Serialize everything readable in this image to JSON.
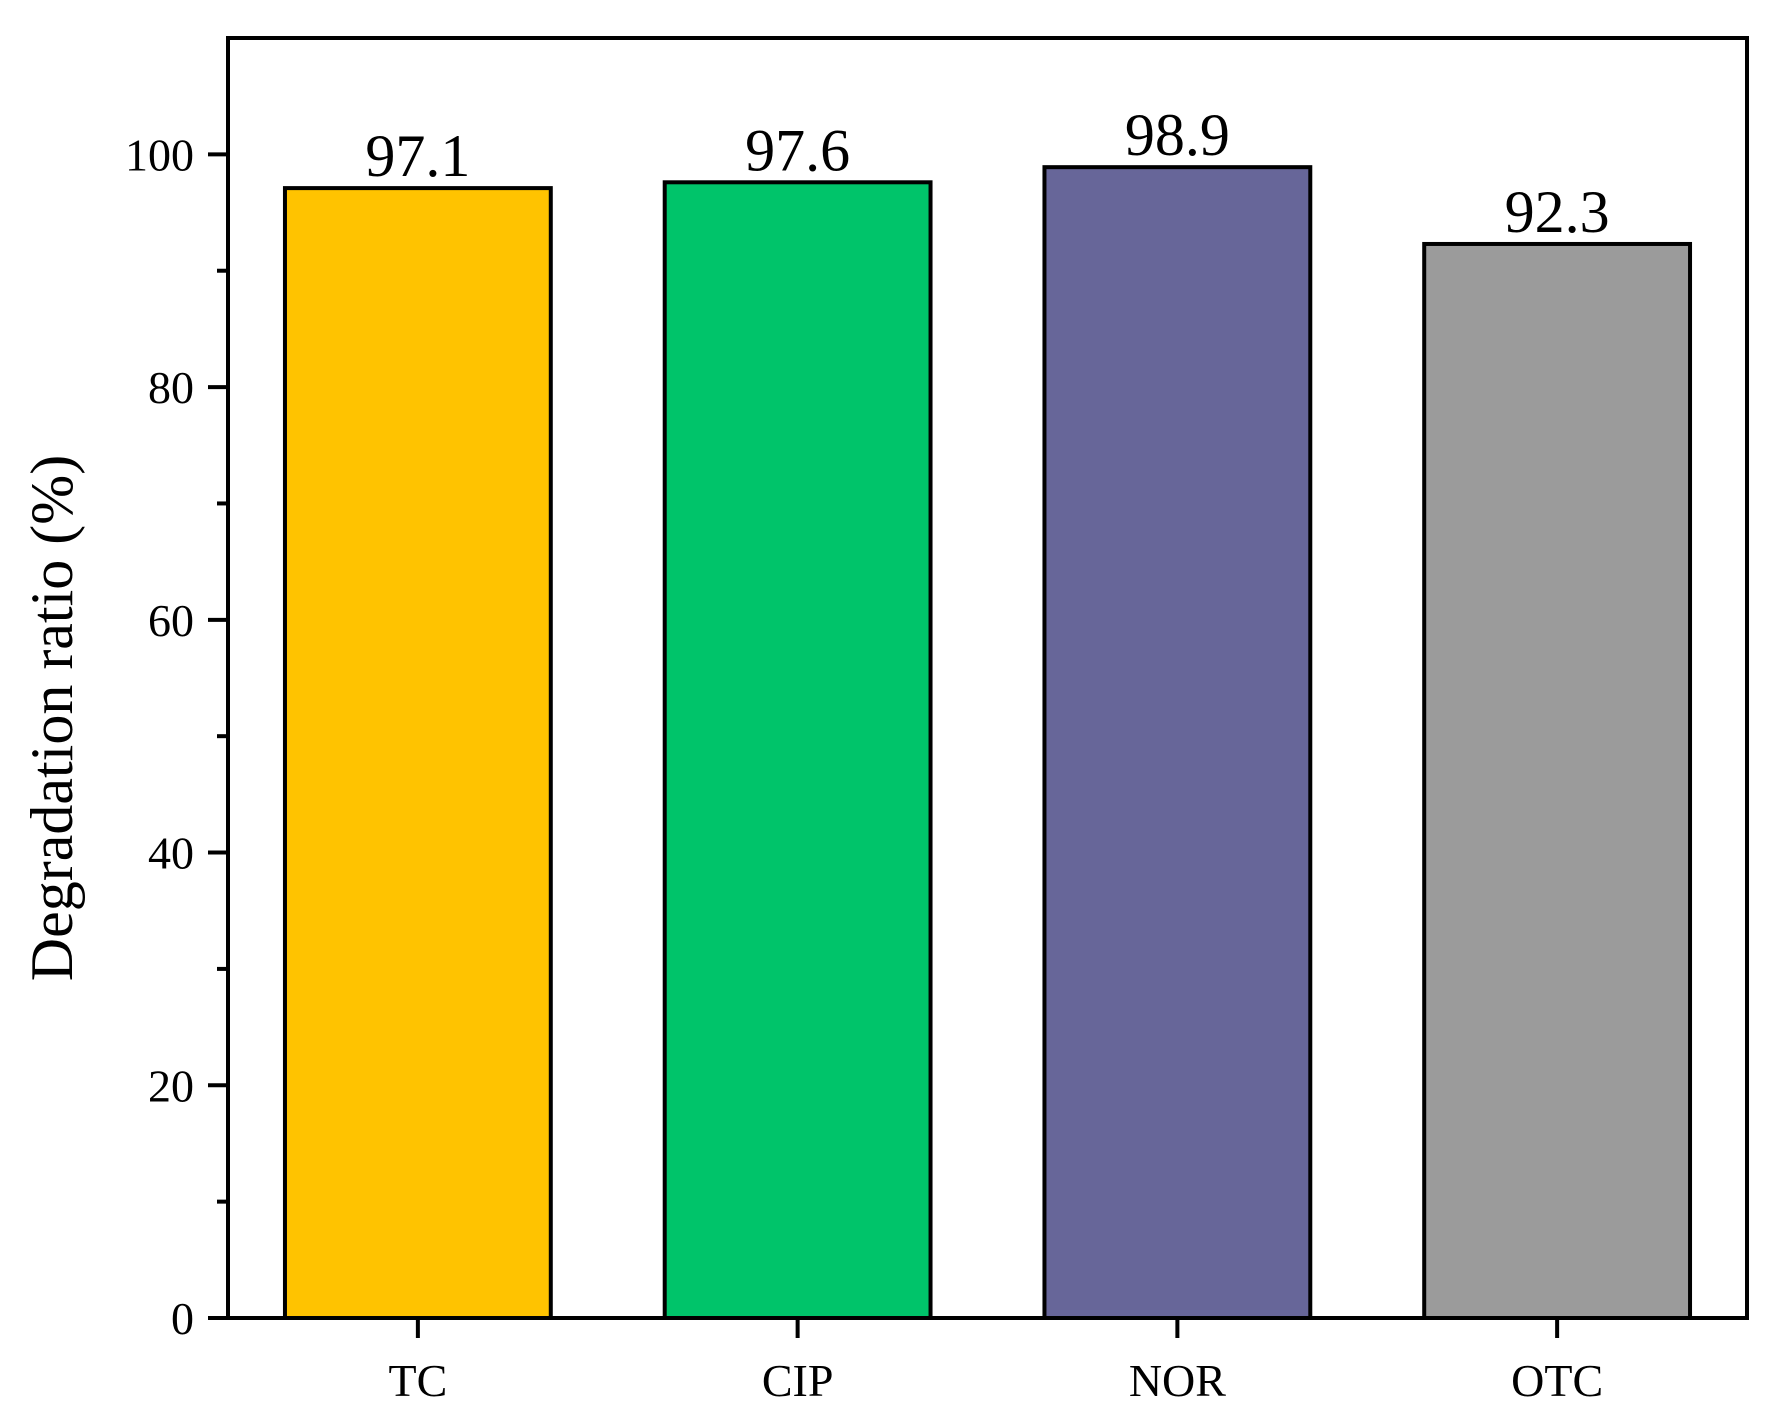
{
  "chart_data": {
    "type": "bar",
    "categories": [
      "TC",
      "CIP",
      "NOR",
      "OTC"
    ],
    "values": [
      97.1,
      97.6,
      98.9,
      92.3
    ],
    "value_labels": [
      "97.1",
      "97.6",
      "98.9",
      "92.3"
    ],
    "bar_colors": [
      "#FFC300",
      "#00C46A",
      "#676699",
      "#9B9B9B"
    ],
    "title": "",
    "xlabel": "",
    "ylabel": "Degradation ratio (%)",
    "ylim": [
      0,
      110
    ],
    "yticks": [
      0,
      20,
      40,
      60,
      80,
      100
    ],
    "yticks_minor": [
      10,
      30,
      50,
      70,
      90
    ],
    "grid": false,
    "legend": "none"
  }
}
